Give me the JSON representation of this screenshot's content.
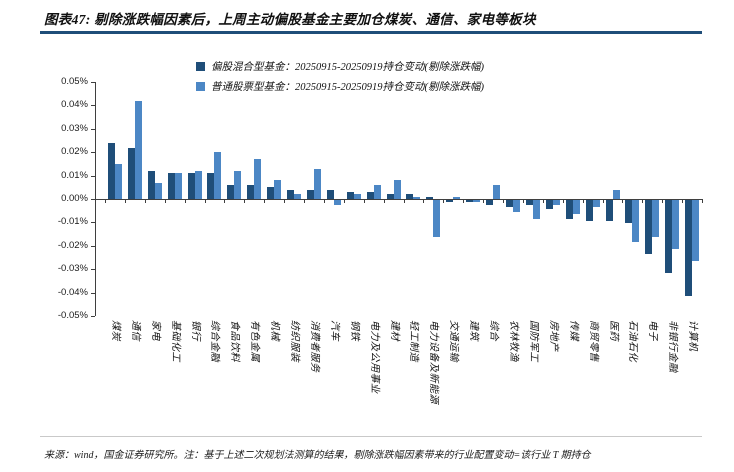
{
  "title": "图表47: 剔除涨跌幅因素后，上周主动偏股基金主要加仓煤炭、通信、家电等板块",
  "footer": {
    "source_note": "来源：wind，国金证券研究所。注：基于上述二次规划法测算的结果，剔除涨跌幅因素带来的行业配置变动=该行业 T 期持仓"
  },
  "colors": {
    "title_underline": "#1F4E79",
    "axis": "#3f3f3f",
    "series_dark": "#1F4E79",
    "series_light": "#4C87C5"
  },
  "chart_data": {
    "type": "bar",
    "title": "",
    "xlabel": "",
    "ylabel": "",
    "unit": "%",
    "grid": false,
    "legend_position": "top",
    "ylim": [
      -0.05,
      0.05
    ],
    "ytick_labels": [
      "0.05%",
      "0.04%",
      "0.03%",
      "0.02%",
      "0.01%",
      "0.00%",
      "-0.01%",
      "-0.02%",
      "-0.03%",
      "-0.04%",
      "-0.05%"
    ],
    "categories": [
      "煤炭",
      "通信",
      "家电",
      "基础化工",
      "银行",
      "综合金融",
      "食品饮料",
      "有色金属",
      "机械",
      "纺织服装",
      "消费者服务",
      "汽车",
      "钢铁",
      "电力及公用事业",
      "建材",
      "轻工制造",
      "电力设备及新能源",
      "交通运输",
      "建筑",
      "综合",
      "农林牧渔",
      "国防军工",
      "房地产",
      "传媒",
      "商贸零售",
      "医药",
      "石油石化",
      "电子",
      "非银行金融",
      "计算机"
    ],
    "series": [
      {
        "name": "偏股混合型基金：20250915-20250919持仓变动(剔除涨跌幅)",
        "color": "#1F4E79",
        "values": [
          0.024,
          0.022,
          0.012,
          0.011,
          0.011,
          0.011,
          0.006,
          0.006,
          0.005,
          0.004,
          0.004,
          0.004,
          0.003,
          0.003,
          0.002,
          0.002,
          0.001,
          -0.001,
          -0.001,
          -0.002,
          -0.003,
          -0.002,
          -0.004,
          -0.008,
          -0.009,
          -0.009,
          -0.01,
          -0.023,
          -0.031,
          -0.041
        ]
      },
      {
        "name": "普通股票型基金：20250915-20250919持仓变动(剔除涨跌幅)",
        "color": "#4C87C5",
        "values": [
          0.015,
          0.042,
          0.007,
          0.011,
          0.012,
          0.02,
          0.012,
          0.017,
          0.008,
          0.002,
          0.013,
          -0.002,
          0.002,
          0.006,
          0.008,
          0.001,
          -0.016,
          0.001,
          -0.001,
          0.006,
          -0.005,
          -0.008,
          -0.002,
          -0.006,
          -0.003,
          0.004,
          -0.018,
          -0.016,
          -0.021,
          -0.026
        ]
      }
    ]
  }
}
